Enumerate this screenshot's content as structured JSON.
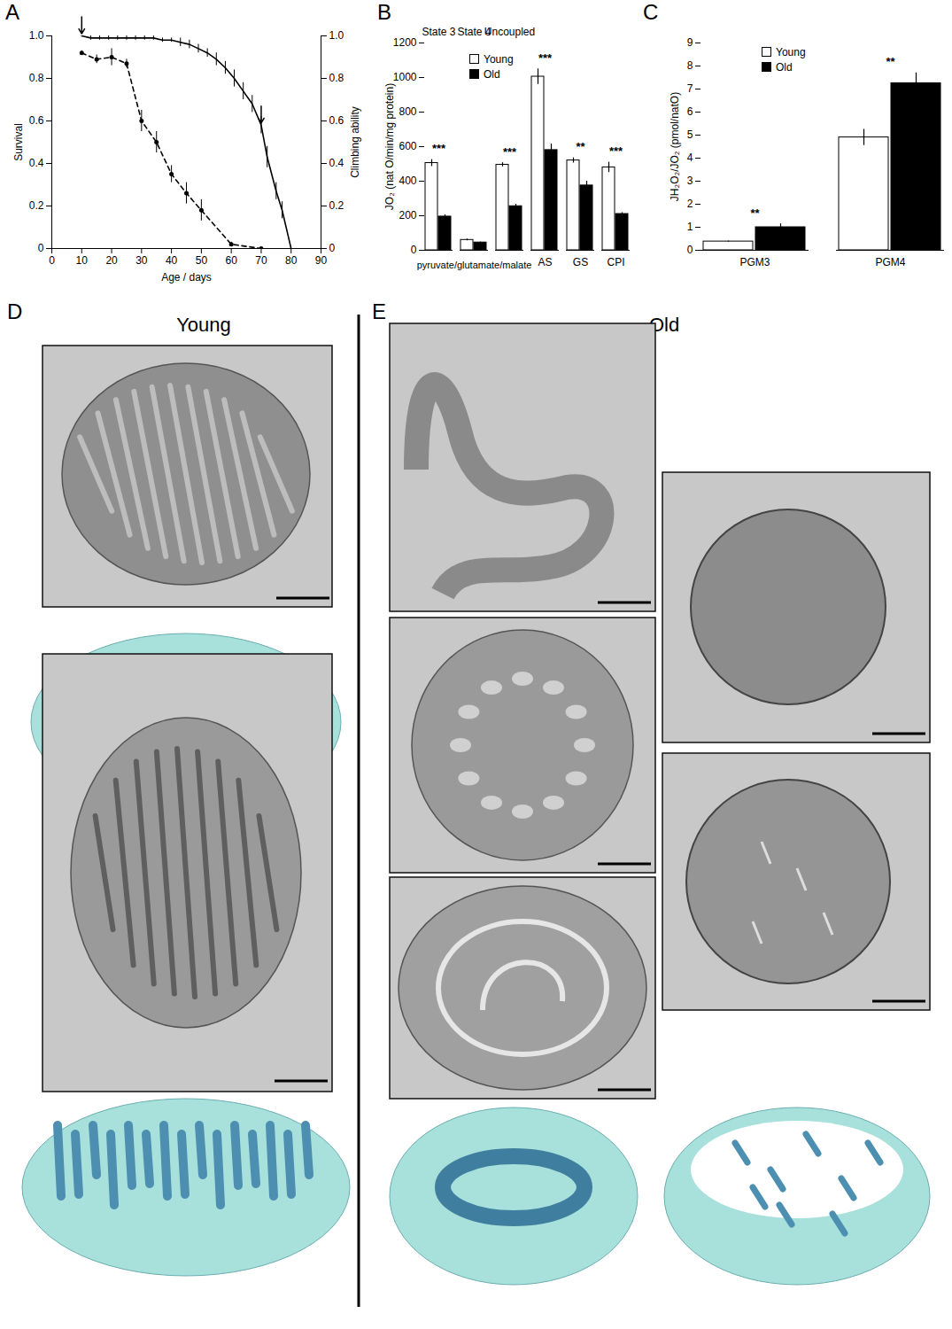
{
  "chart_data": [
    {
      "type": "line",
      "title": "A",
      "xlabel": "Age / days",
      "ylabel": "Survival",
      "y2label": "Climbing ability",
      "xlim": [
        0,
        90
      ],
      "xticks": [
        0,
        10,
        20,
        30,
        40,
        50,
        60,
        70,
        80,
        90
      ],
      "ylim": [
        0,
        1
      ],
      "yticks": [
        0,
        0.2,
        0.4,
        0.6,
        0.8,
        {
          "value": 1,
          "label": "1.0"
        }
      ],
      "y2lim": [
        0,
        1
      ],
      "y2ticks": [
        0,
        0.2,
        0.4,
        0.6,
        0.8,
        {
          "value": 1,
          "label": "1.0"
        }
      ],
      "arrows": [
        10,
        70
      ],
      "series": [
        {
          "color": "#000000",
          "line_style": "solid",
          "x": [
            10,
            13,
            16,
            19,
            22,
            25,
            28,
            31,
            34,
            37,
            40,
            43,
            46,
            49,
            52,
            55,
            58,
            61,
            64,
            67,
            70,
            72,
            75,
            77,
            80
          ],
          "values": [
            1.0,
            0.99,
            0.99,
            0.99,
            0.99,
            0.99,
            0.99,
            0.99,
            0.99,
            0.98,
            0.98,
            0.97,
            0.96,
            0.94,
            0.92,
            0.89,
            0.85,
            0.8,
            0.74,
            0.68,
            0.58,
            0.43,
            0.27,
            0.18,
            0.0
          ],
          "errors": [
            0,
            0.01,
            0.01,
            0.01,
            0.01,
            0.01,
            0.01,
            0.01,
            0.01,
            0.01,
            0.01,
            0.02,
            0.02,
            0.02,
            0.02,
            0.03,
            0.03,
            0.04,
            0.04,
            0.04,
            0.04,
            0.05,
            0.04,
            0.04,
            0
          ]
        },
        {
          "color": "#000000",
          "line_style": "dashed",
          "marker": "circle",
          "axis": "y2",
          "x": [
            10,
            15,
            20,
            25,
            30,
            35,
            40,
            45,
            50,
            60,
            70
          ],
          "values": [
            0.92,
            0.89,
            0.9,
            0.87,
            0.6,
            0.5,
            0.35,
            0.26,
            0.18,
            0.02,
            0.0
          ],
          "errors": [
            0.01,
            0.02,
            0.04,
            0.02,
            0.05,
            0.05,
            0.04,
            0.05,
            0.05,
            0.01,
            0
          ]
        }
      ]
    },
    {
      "type": "bar",
      "title": "B",
      "ylabel": "JO₂ (nat O/min/mg protein)",
      "categories": [
        "State 3",
        "State 4",
        "Uncoupled",
        "AS",
        "GS",
        "CPI"
      ],
      "substrate_group": {
        "label": "pyruvate/glutamate/malate",
        "categories": [
          "State 3",
          "State 4",
          "Uncoupled"
        ]
      },
      "ylim": [
        0,
        1200
      ],
      "yticks": [
        0,
        200,
        400,
        600,
        800,
        1000,
        1200
      ],
      "legend": "upper left",
      "significance": [
        "***",
        null,
        "***",
        "***",
        "**",
        "***"
      ],
      "series": [
        {
          "name": "Young",
          "color": "#ffffff",
          "values": [
            505,
            60,
            495,
            1005,
            520,
            480
          ],
          "errors": [
            20,
            5,
            12,
            45,
            15,
            30
          ]
        },
        {
          "name": "Old",
          "color": "#000000",
          "values": [
            195,
            45,
            255,
            580,
            375,
            210
          ],
          "errors": [
            10,
            3,
            12,
            35,
            25,
            8
          ]
        }
      ]
    },
    {
      "type": "bar",
      "title": "C",
      "ylabel": "JH₂O₂/JO₂ (pmol/natO)",
      "categories": [
        "PGM3",
        "PGM4"
      ],
      "ylim": [
        0,
        9
      ],
      "yticks": [
        0,
        1,
        2,
        3,
        4,
        5,
        6,
        7,
        8,
        9
      ],
      "legend": "upper left",
      "significance": [
        "**",
        "**"
      ],
      "series": [
        {
          "name": "Young",
          "color": "#ffffff",
          "values": [
            0.38,
            4.9
          ],
          "errors": [
            0.02,
            0.35
          ]
        },
        {
          "name": "Old",
          "color": "#000000",
          "values": [
            1.0,
            7.25
          ],
          "errors": [
            0.15,
            0.45
          ]
        }
      ]
    }
  ],
  "panels": [
    {
      "letter": "D",
      "title": "Young"
    },
    {
      "letter": "E",
      "title": "Old"
    }
  ]
}
